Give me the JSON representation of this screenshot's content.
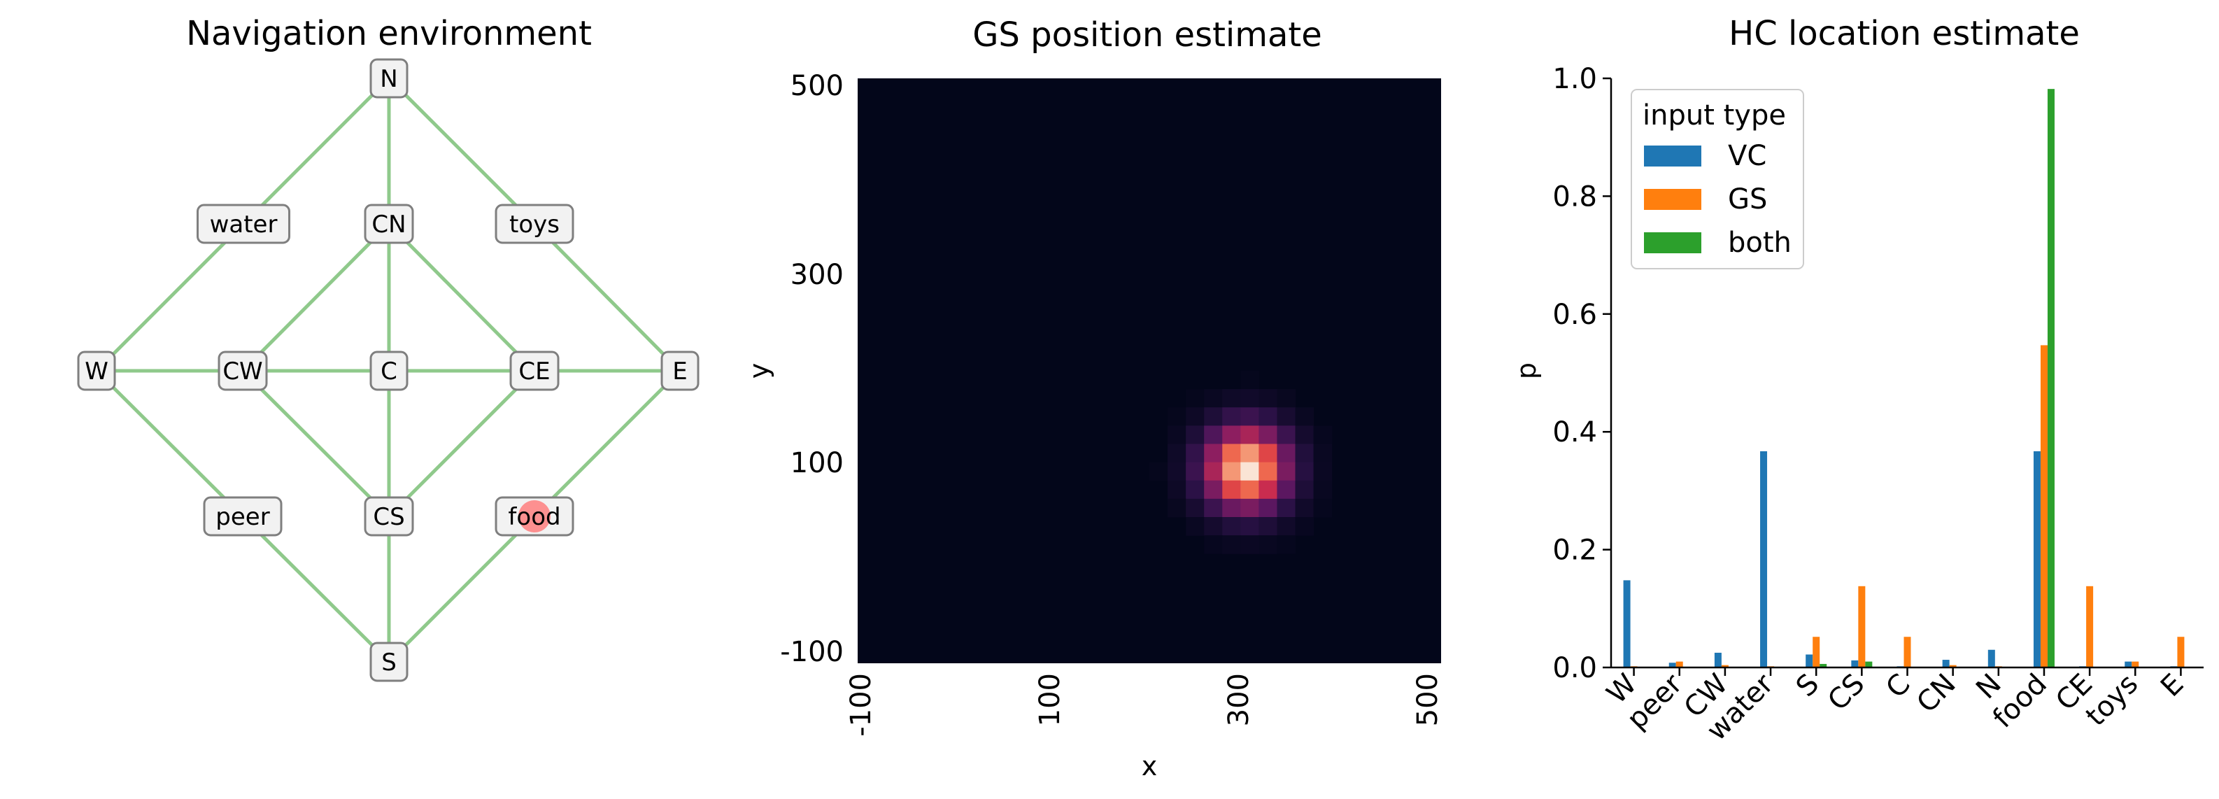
{
  "chart_data": [
    {
      "type": "graph",
      "title": "Navigation environment",
      "nodes": [
        "N",
        "water",
        "CN",
        "toys",
        "W",
        "CW",
        "C",
        "CE",
        "E",
        "peer",
        "CS",
        "food",
        "S"
      ],
      "edges": [
        [
          "N",
          "water"
        ],
        [
          "N",
          "CN"
        ],
        [
          "N",
          "toys"
        ],
        [
          "water",
          "W"
        ],
        [
          "toys",
          "E"
        ],
        [
          "CN",
          "CW"
        ],
        [
          "CN",
          "C"
        ],
        [
          "CN",
          "CE"
        ],
        [
          "W",
          "CW"
        ],
        [
          "CW",
          "C"
        ],
        [
          "C",
          "CE"
        ],
        [
          "CE",
          "E"
        ],
        [
          "W",
          "peer"
        ],
        [
          "CW",
          "CS"
        ],
        [
          "C",
          "CS"
        ],
        [
          "CE",
          "CS"
        ],
        [
          "E",
          "food"
        ],
        [
          "peer",
          "S"
        ],
        [
          "CS",
          "S"
        ],
        [
          "food",
          "S"
        ]
      ],
      "current_location": "food",
      "edge_color": "#8fc98b",
      "marker_color": "#ff7f7f"
    },
    {
      "type": "heatmap",
      "title": "GS position estimate",
      "xlabel": "x",
      "ylabel": "y",
      "xticks": [
        "-100",
        "100",
        "300",
        "500"
      ],
      "yticks": [
        "500",
        "300",
        "100",
        "-100"
      ],
      "range": [
        -100,
        500
      ],
      "peak": {
        "x": 300,
        "y": 100
      },
      "spread": 30,
      "colormap": "rocket",
      "background_color": "#03061a"
    },
    {
      "type": "bar",
      "title": "HC location estimate",
      "xlabel": "",
      "ylabel": "p",
      "ylim": [
        0,
        1.0
      ],
      "yticks": [
        "0.0",
        "0.2",
        "0.4",
        "0.6",
        "0.8",
        "1.0"
      ],
      "categories": [
        "W",
        "peer",
        "CW",
        "water",
        "S",
        "CS",
        "C",
        "CN",
        "N",
        "food",
        "CE",
        "toys",
        "E"
      ],
      "legend_title": "input type",
      "legend_position": "top-left",
      "series": [
        {
          "name": "VC",
          "color": "#1f77b4",
          "values": [
            0.148,
            0.008,
            0.025,
            0.367,
            0.022,
            0.012,
            0.002,
            0.013,
            0.03,
            0.367,
            0.002,
            0.01,
            0.002
          ]
        },
        {
          "name": "GS",
          "color": "#ff7f0e",
          "values": [
            0.002,
            0.01,
            0.004,
            0.002,
            0.052,
            0.138,
            0.052,
            0.004,
            0.002,
            0.547,
            0.138,
            0.01,
            0.052
          ]
        },
        {
          "name": "both",
          "color": "#2ca02c",
          "values": [
            0.0,
            0.0,
            0.0,
            0.0,
            0.006,
            0.01,
            0.0,
            0.0,
            0.0,
            0.982,
            0.0,
            0.0,
            0.0
          ]
        }
      ]
    }
  ]
}
